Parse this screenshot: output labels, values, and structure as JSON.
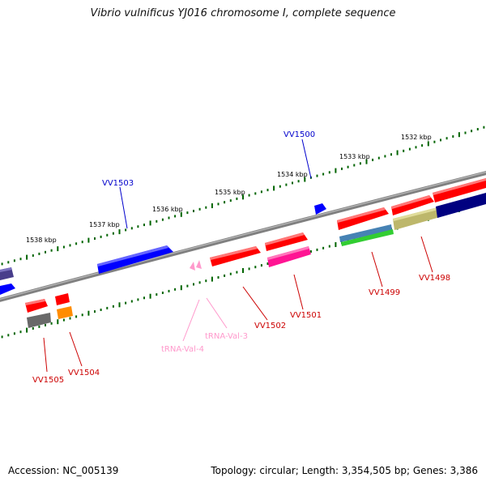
{
  "title": "Vibrio vulnificus YJ016 chromosome I, complete sequence",
  "footer": {
    "accession": "Accession: NC_005139",
    "summary": "Topology: circular; Length: 3,354,505 bp; Genes: 3,386"
  },
  "kbp_ticks": [
    "1532 kbp",
    "1533 kbp",
    "1534 kbp",
    "1535 kbp",
    "1536 kbp",
    "1537 kbp",
    "1538 kbp"
  ],
  "gene_labels": [
    "VV1500",
    "VV1503",
    "VV1499",
    "VV1498",
    "VV1501",
    "VV1502",
    "VV1504",
    "VV1505",
    "tRNA-Val-3",
    "tRNA-Val-4"
  ],
  "colors": {
    "backbone": "#808080",
    "blue_gene": "#0000ff",
    "red_gene": "#ff0000",
    "magenta_gene": "#ff1493",
    "navy_gene": "#000080",
    "khaki_gene": "#bdb76b",
    "steelblue_gene": "#4682b4",
    "green_gene": "#32cd32",
    "slateblue_gene": "#483d8b",
    "gray_gene": "#696969",
    "orange_gene": "#ff8c00",
    "trna": "#ff99cc",
    "tick_green": "#006400",
    "label_blue": "#0000cc",
    "label_red": "#cc0000"
  }
}
